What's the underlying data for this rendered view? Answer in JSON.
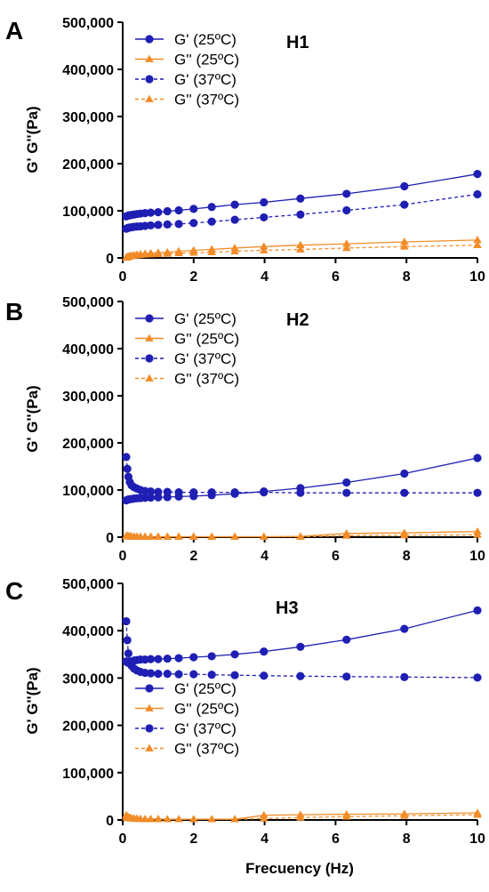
{
  "colors": {
    "g_prime": "#1f1fb4",
    "g_double_prime": "#f28c28",
    "axis": "#000000"
  },
  "xlabel": "Frecuency (Hz)",
  "ylabel": "G' G''(Pa)",
  "chart_data": [
    {
      "type": "line",
      "panel_letter": "A",
      "sample_label": "H1",
      "xlim": [
        0,
        10
      ],
      "ylim": [
        0,
        500000
      ],
      "xticks": [
        0,
        2,
        4,
        6,
        8,
        10
      ],
      "yticks": [
        0,
        100000,
        200000,
        300000,
        400000,
        500000
      ],
      "ytick_labels": [
        "0",
        "100,000",
        "200,000",
        "300,000",
        "400,000",
        "500,000"
      ],
      "xlabel": "",
      "ylabel": "G' G''(Pa)",
      "legend_position": "top-left",
      "series": [
        {
          "name": "G'  (25ºC)",
          "marker": "circle",
          "dash": "solid",
          "x": [
            0.1,
            0.13,
            0.16,
            0.2,
            0.25,
            0.32,
            0.4,
            0.5,
            0.63,
            0.79,
            1.0,
            1.26,
            1.58,
            2.0,
            2.51,
            3.16,
            3.98,
            5.01,
            6.31,
            7.94,
            10.0
          ],
          "y": [
            88000,
            89000,
            90000,
            90500,
            91000,
            92000,
            93000,
            94000,
            95000,
            96000,
            97000,
            99000,
            101000,
            104000,
            108000,
            113000,
            118000,
            126000,
            136000,
            152000,
            178000
          ]
        },
        {
          "name": "G''  (25ºC)",
          "marker": "triangle",
          "dash": "solid",
          "x": [
            0.1,
            0.13,
            0.16,
            0.2,
            0.25,
            0.32,
            0.4,
            0.5,
            0.63,
            0.79,
            1.0,
            1.26,
            1.58,
            2.0,
            2.51,
            3.16,
            3.98,
            5.01,
            6.31,
            7.94,
            10.0
          ],
          "y": [
            1000,
            2000,
            3000,
            4000,
            5000,
            6000,
            7000,
            8000,
            9000,
            10000,
            11000,
            12000,
            14000,
            16000,
            18000,
            21000,
            24000,
            27000,
            30000,
            34000,
            38000
          ]
        },
        {
          "name": "G'  (37ºC)",
          "marker": "circle",
          "dash": "dashed",
          "x": [
            0.1,
            0.13,
            0.16,
            0.2,
            0.25,
            0.32,
            0.4,
            0.5,
            0.63,
            0.79,
            1.0,
            1.26,
            1.58,
            2.0,
            2.51,
            3.16,
            3.98,
            5.01,
            6.31,
            7.94,
            10.0
          ],
          "y": [
            62000,
            63000,
            64000,
            64500,
            65000,
            66000,
            66500,
            67000,
            68000,
            69000,
            70000,
            71000,
            72000,
            74000,
            77000,
            81000,
            86000,
            92000,
            101000,
            113000,
            135000
          ]
        },
        {
          "name": "G''  (37ºC)",
          "marker": "triangle",
          "dash": "dashed",
          "x": [
            0.1,
            0.13,
            0.16,
            0.2,
            0.25,
            0.32,
            0.4,
            0.5,
            0.63,
            0.79,
            1.0,
            1.26,
            1.58,
            2.0,
            2.51,
            3.16,
            3.98,
            5.01,
            6.31,
            7.94,
            10.0
          ],
          "y": [
            500,
            1000,
            2000,
            3000,
            4000,
            5000,
            5500,
            6000,
            7000,
            7500,
            8000,
            9000,
            10000,
            11000,
            12000,
            14000,
            16000,
            18000,
            21000,
            24000,
            27000
          ]
        }
      ]
    },
    {
      "type": "line",
      "panel_letter": "B",
      "sample_label": "H2",
      "xlim": [
        0,
        10
      ],
      "ylim": [
        0,
        500000
      ],
      "xticks": [
        0,
        2,
        4,
        6,
        8,
        10
      ],
      "yticks": [
        0,
        100000,
        200000,
        300000,
        400000,
        500000
      ],
      "ytick_labels": [
        "0",
        "100,000",
        "200,000",
        "300,000",
        "400,000",
        "500,000"
      ],
      "xlabel": "",
      "ylabel": "G' G''(Pa)",
      "legend_position": "top-left",
      "series": [
        {
          "name": "G'  (25ºC)",
          "marker": "circle",
          "dash": "solid",
          "x": [
            0.1,
            0.13,
            0.16,
            0.2,
            0.25,
            0.32,
            0.4,
            0.5,
            0.63,
            0.79,
            1.0,
            1.26,
            1.58,
            2.0,
            2.51,
            3.16,
            3.98,
            5.01,
            6.31,
            7.94,
            10.0
          ],
          "y": [
            78000,
            79000,
            80000,
            80500,
            81000,
            82000,
            82500,
            83000,
            83500,
            84000,
            84500,
            85000,
            86000,
            87000,
            89000,
            92000,
            97000,
            104000,
            116000,
            135000,
            168000
          ]
        },
        {
          "name": "G''  (25ºC)",
          "marker": "triangle",
          "dash": "solid",
          "x": [
            0.1,
            0.13,
            0.16,
            0.2,
            0.25,
            0.32,
            0.4,
            0.5,
            0.63,
            0.79,
            1.0,
            1.26,
            1.58,
            2.0,
            2.51,
            3.16,
            3.98,
            5.01,
            6.31,
            7.94,
            10.0
          ],
          "y": [
            3000,
            2500,
            2000,
            2000,
            1500,
            1500,
            1000,
            1000,
            1000,
            1000,
            1000,
            1000,
            1000,
            1000,
            1000,
            1000,
            1000,
            1500,
            8000,
            9000,
            12000
          ]
        },
        {
          "name": "G'  (37ºC)",
          "marker": "circle",
          "dash": "dashed",
          "x": [
            0.1,
            0.13,
            0.16,
            0.2,
            0.25,
            0.32,
            0.4,
            0.5,
            0.63,
            0.79,
            1.0,
            1.26,
            1.58,
            2.0,
            2.51,
            3.16,
            3.98,
            5.01,
            6.31,
            7.94,
            10.0
          ],
          "y": [
            170000,
            145000,
            128000,
            117000,
            110000,
            106000,
            103000,
            100000,
            98000,
            97000,
            96000,
            96000,
            95000,
            95000,
            95000,
            95000,
            95000,
            94000,
            94000,
            94000,
            94000
          ]
        },
        {
          "name": "G''  (37ºC)",
          "marker": "triangle",
          "dash": "dashed",
          "x": [
            0.1,
            0.13,
            0.16,
            0.2,
            0.25,
            0.32,
            0.4,
            0.5,
            0.63,
            0.79,
            1.0,
            1.26,
            1.58,
            2.0,
            2.51,
            3.16,
            3.98,
            5.01,
            6.31,
            7.94,
            10.0
          ],
          "y": [
            2000,
            2000,
            1500,
            1500,
            1000,
            1000,
            1000,
            1000,
            1000,
            1000,
            1000,
            1000,
            1000,
            1000,
            1000,
            1000,
            1000,
            1000,
            3000,
            4000,
            5000
          ]
        }
      ]
    },
    {
      "type": "line",
      "panel_letter": "C",
      "sample_label": "H3",
      "xlim": [
        0,
        10
      ],
      "ylim": [
        0,
        500000
      ],
      "xticks": [
        0,
        2,
        4,
        6,
        8,
        10
      ],
      "yticks": [
        0,
        100000,
        200000,
        300000,
        400000,
        500000
      ],
      "ytick_labels": [
        "0",
        "100,000",
        "200,000",
        "300,000",
        "400,000",
        "500,000"
      ],
      "xlabel": "Frecuency (Hz)",
      "ylabel": "G' G''(Pa)",
      "legend_position": "bottom-left",
      "series": [
        {
          "name": "G'  (25ºC)",
          "marker": "circle",
          "dash": "solid",
          "x": [
            0.1,
            0.13,
            0.16,
            0.2,
            0.25,
            0.32,
            0.4,
            0.5,
            0.63,
            0.79,
            1.0,
            1.26,
            1.58,
            2.0,
            2.51,
            3.16,
            3.98,
            5.01,
            6.31,
            7.94,
            10.0
          ],
          "y": [
            335000,
            333000,
            332000,
            333000,
            335000,
            337000,
            338000,
            339000,
            339000,
            340000,
            340000,
            341000,
            342000,
            344000,
            346000,
            350000,
            356000,
            366000,
            381000,
            404000,
            443000
          ]
        },
        {
          "name": "G''  (25ºC)",
          "marker": "triangle",
          "dash": "solid",
          "x": [
            0.1,
            0.13,
            0.16,
            0.2,
            0.25,
            0.32,
            0.4,
            0.5,
            0.63,
            0.79,
            1.0,
            1.26,
            1.58,
            2.0,
            2.51,
            3.16,
            3.98,
            5.01,
            6.31,
            7.94,
            10.0
          ],
          "y": [
            10000,
            8000,
            6000,
            5000,
            4000,
            3500,
            3000,
            2500,
            2000,
            2000,
            2000,
            1500,
            1500,
            1500,
            1500,
            1500,
            10000,
            11000,
            12000,
            13000,
            15000
          ]
        },
        {
          "name": "G'  (37ºC)",
          "marker": "circle",
          "dash": "dashed",
          "x": [
            0.1,
            0.13,
            0.16,
            0.2,
            0.25,
            0.32,
            0.4,
            0.5,
            0.63,
            0.79,
            1.0,
            1.26,
            1.58,
            2.0,
            2.51,
            3.16,
            3.98,
            5.01,
            6.31,
            7.94,
            10.0
          ],
          "y": [
            420000,
            380000,
            352000,
            335000,
            326000,
            320000,
            316000,
            313000,
            311000,
            310000,
            309000,
            309000,
            308000,
            308000,
            307000,
            306000,
            305000,
            304000,
            303000,
            302000,
            301000
          ]
        },
        {
          "name": "G''  (37ºC)",
          "marker": "triangle",
          "dash": "dashed",
          "x": [
            0.1,
            0.13,
            0.16,
            0.2,
            0.25,
            0.32,
            0.4,
            0.5,
            0.63,
            0.79,
            1.0,
            1.26,
            1.58,
            2.0,
            2.51,
            3.16,
            3.98,
            5.01,
            6.31,
            7.94,
            10.0
          ],
          "y": [
            6000,
            5000,
            4000,
            3500,
            3000,
            2500,
            2000,
            2000,
            2000,
            1500,
            1500,
            1500,
            1500,
            1500,
            1500,
            1500,
            3000,
            5000,
            7000,
            9000,
            11000
          ]
        }
      ]
    }
  ]
}
